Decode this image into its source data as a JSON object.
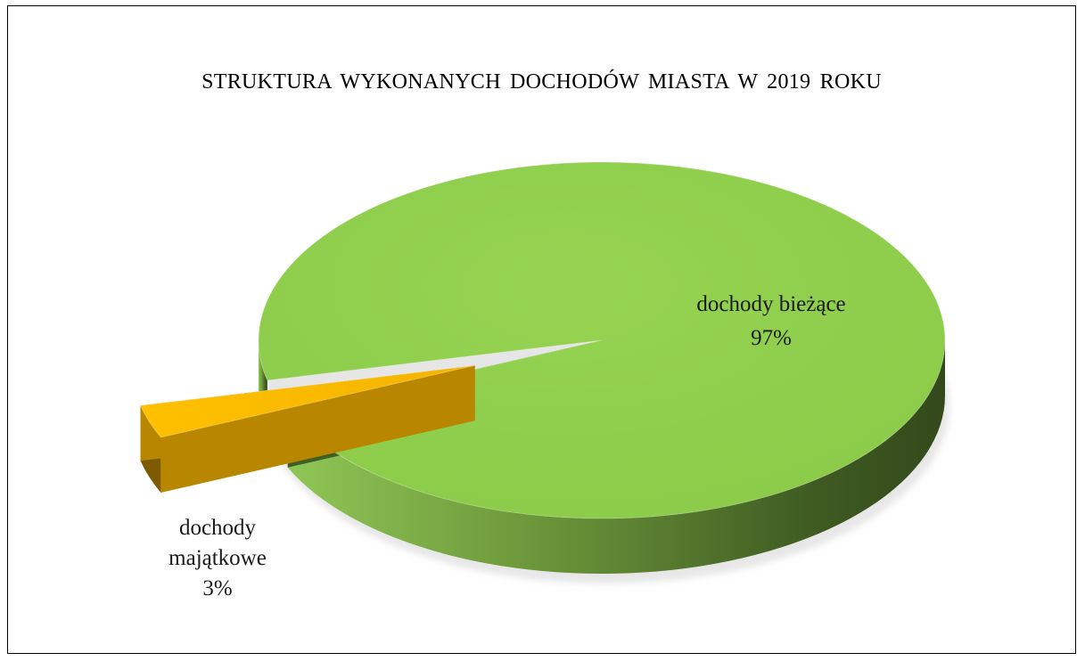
{
  "chart_data": {
    "type": "pie",
    "style": "3d-exploded",
    "title": "STRUKTURA  WYKONANYCH  DOCHODÓW  MIASTA  W 2019 ROKU",
    "slices": [
      {
        "label": "dochody bieżące",
        "value": 97,
        "value_label": "97%",
        "color": "#92D050"
      },
      {
        "label": "dochody majątkowe",
        "value": 3,
        "value_label": "3%",
        "color": "#FFC000"
      }
    ],
    "legend": "none"
  }
}
